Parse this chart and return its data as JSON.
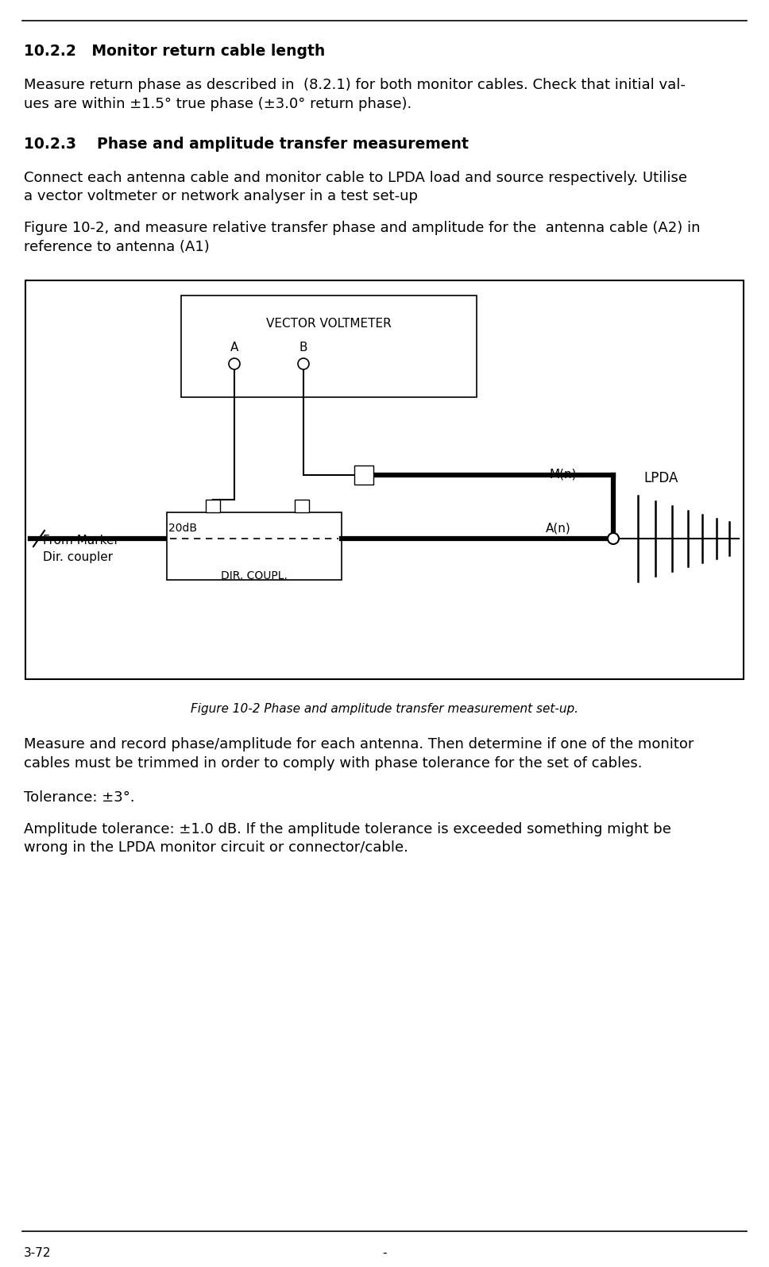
{
  "section_1_num": "10.2.2",
  "section_1_title": "   Monitor return cable length",
  "section_1_body1": "Measure return phase as described in  (8.2.1) for both monitor cables. Check that initial val-",
  "section_1_body2": "ues are within ±1.5° true phase (±3.0° return phase).",
  "section_2_num": "10.2.3",
  "section_2_title": "    Phase and amplitude transfer measurement",
  "section_2_body1a": "Connect each antenna cable and monitor cable to LPDA load and source respectively. Utilise",
  "section_2_body1b": "a vector voltmeter or network analyser in a test set-up",
  "section_2_body2a": "Figure 10-2, and measure relative transfer phase and amplitude for the  antenna cable (A2) in",
  "section_2_body2b": "reference to antenna (A1)",
  "dot_text": ".",
  "figure_caption": "Figure 10-2 Phase and amplitude transfer measurement set-up.",
  "section_3_body1a": "Measure and record phase/amplitude for each antenna. Then determine if one of the monitor",
  "section_3_body1b": "cables must be trimmed in order to comply with phase tolerance for the set of cables.",
  "section_3_body2": "Tolerance: ±3°.",
  "section_3_body3a": "Amplitude tolerance: ±1.0 dB. If the amplitude tolerance is exceeded something might be",
  "section_3_body3b": "wrong in the LPDA monitor circuit or connector/cable.",
  "footer_left": "3-72",
  "footer_center": "-",
  "bg_color": "#ffffff",
  "text_color": "#000000"
}
